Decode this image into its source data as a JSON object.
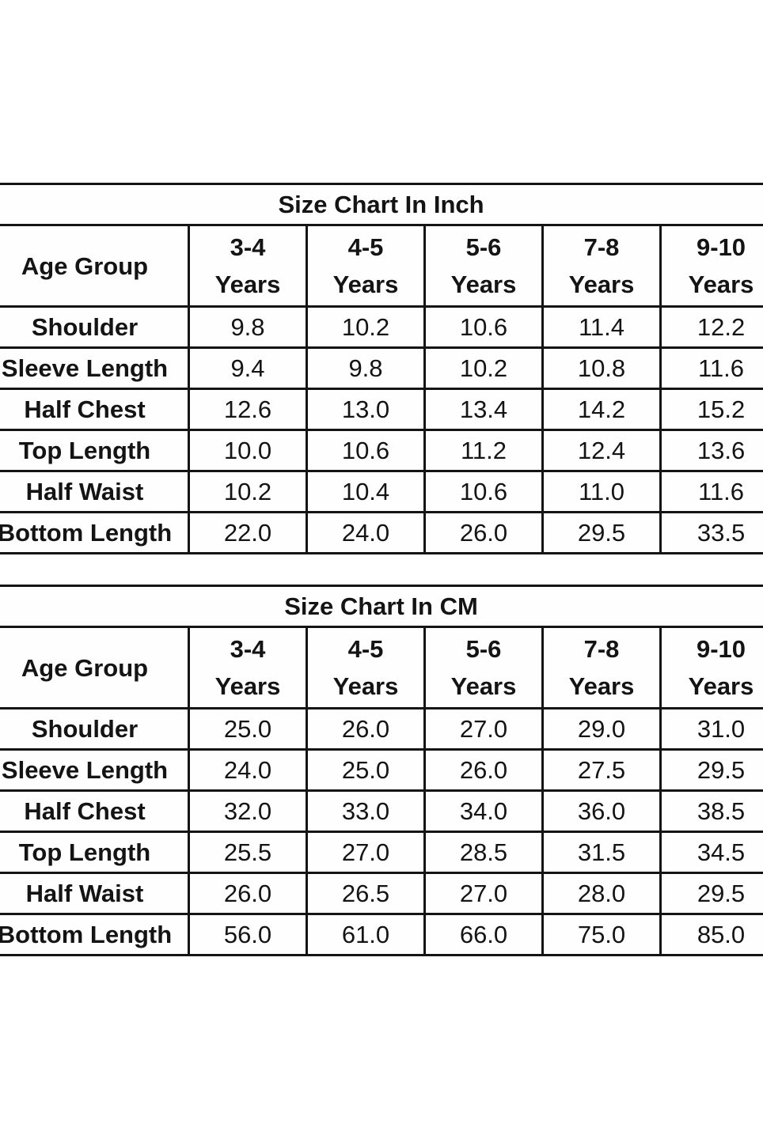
{
  "page": {
    "background": "#ffffff",
    "text_color": "#141414",
    "border_color": "#141414"
  },
  "tables": [
    {
      "title": "Size Chart In Inch",
      "header": {
        "label": "Age Group",
        "columns": [
          {
            "range": "3-4",
            "unit": "Years"
          },
          {
            "range": "4-5",
            "unit": "Years"
          },
          {
            "range": "5-6",
            "unit": "Years"
          },
          {
            "range": "7-8",
            "unit": "Years"
          },
          {
            "range": "9-10",
            "unit": "Years"
          }
        ]
      },
      "rows": [
        {
          "label": "Shoulder",
          "values": [
            "9.8",
            "10.2",
            "10.6",
            "11.4",
            "12.2"
          ]
        },
        {
          "label": "Sleeve Length",
          "values": [
            "9.4",
            "9.8",
            "10.2",
            "10.8",
            "11.6"
          ]
        },
        {
          "label": "Half Chest",
          "values": [
            "12.6",
            "13.0",
            "13.4",
            "14.2",
            "15.2"
          ]
        },
        {
          "label": "Top Length",
          "values": [
            "10.0",
            "10.6",
            "11.2",
            "12.4",
            "13.6"
          ]
        },
        {
          "label": "Half Waist",
          "values": [
            "10.2",
            "10.4",
            "10.6",
            "11.0",
            "11.6"
          ]
        },
        {
          "label": "Bottom Length",
          "values": [
            "22.0",
            "24.0",
            "26.0",
            "29.5",
            "33.5"
          ]
        }
      ]
    },
    {
      "title": "Size Chart In CM",
      "header": {
        "label": "Age Group",
        "columns": [
          {
            "range": "3-4",
            "unit": "Years"
          },
          {
            "range": "4-5",
            "unit": "Years"
          },
          {
            "range": "5-6",
            "unit": "Years"
          },
          {
            "range": "7-8",
            "unit": "Years"
          },
          {
            "range": "9-10",
            "unit": "Years"
          }
        ]
      },
      "rows": [
        {
          "label": "Shoulder",
          "values": [
            "25.0",
            "26.0",
            "27.0",
            "29.0",
            "31.0"
          ]
        },
        {
          "label": "Sleeve Length",
          "values": [
            "24.0",
            "25.0",
            "26.0",
            "27.5",
            "29.5"
          ]
        },
        {
          "label": "Half Chest",
          "values": [
            "32.0",
            "33.0",
            "34.0",
            "36.0",
            "38.5"
          ]
        },
        {
          "label": "Top Length",
          "values": [
            "25.5",
            "27.0",
            "28.5",
            "31.5",
            "34.5"
          ]
        },
        {
          "label": "Half Waist",
          "values": [
            "26.0",
            "26.5",
            "27.0",
            "28.0",
            "29.5"
          ]
        },
        {
          "label": "Bottom Length",
          "values": [
            "56.0",
            "61.0",
            "66.0",
            "75.0",
            "85.0"
          ]
        }
      ]
    }
  ]
}
